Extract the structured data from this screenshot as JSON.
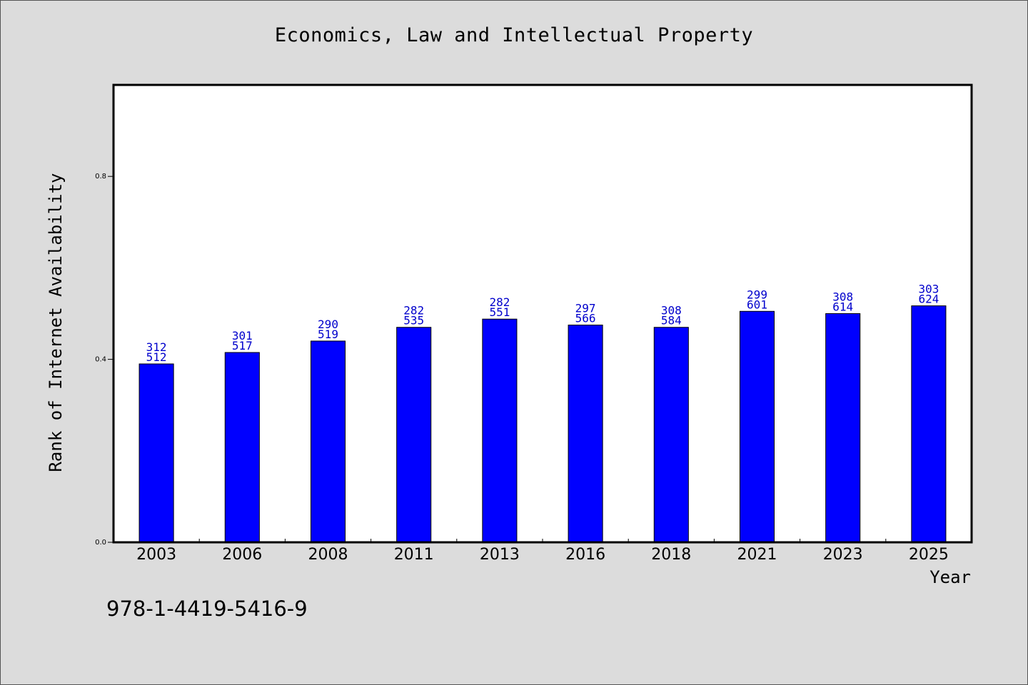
{
  "chart_data": {
    "type": "bar",
    "title": "Economics, Law and Intellectual Property",
    "xlabel": "Year",
    "ylabel": "Rank of Internet Availability",
    "categories": [
      "2003",
      "2006",
      "2008",
      "2011",
      "2013",
      "2016",
      "2018",
      "2021",
      "2023",
      "2025"
    ],
    "values": [
      0.39,
      0.415,
      0.44,
      0.47,
      0.488,
      0.475,
      0.47,
      0.505,
      0.5,
      0.517
    ],
    "bar_labels": [
      [
        "312",
        "512"
      ],
      [
        "301",
        "517"
      ],
      [
        "290",
        "519"
      ],
      [
        "282",
        "535"
      ],
      [
        "282",
        "551"
      ],
      [
        "297",
        "566"
      ],
      [
        "308",
        "584"
      ],
      [
        "299",
        "601"
      ],
      [
        "308",
        "614"
      ],
      [
        "303",
        "624"
      ]
    ],
    "ylim": [
      0,
      1.0
    ],
    "yticks": [
      0.0,
      0.4,
      0.8
    ],
    "ytick_labels": [
      "0.0",
      "0.4",
      "0.8"
    ],
    "grid": false,
    "bar_color": "#0000ff",
    "label_color": "#0000cc"
  },
  "footer": {
    "isbn": "978-1-4419-5416-9"
  }
}
